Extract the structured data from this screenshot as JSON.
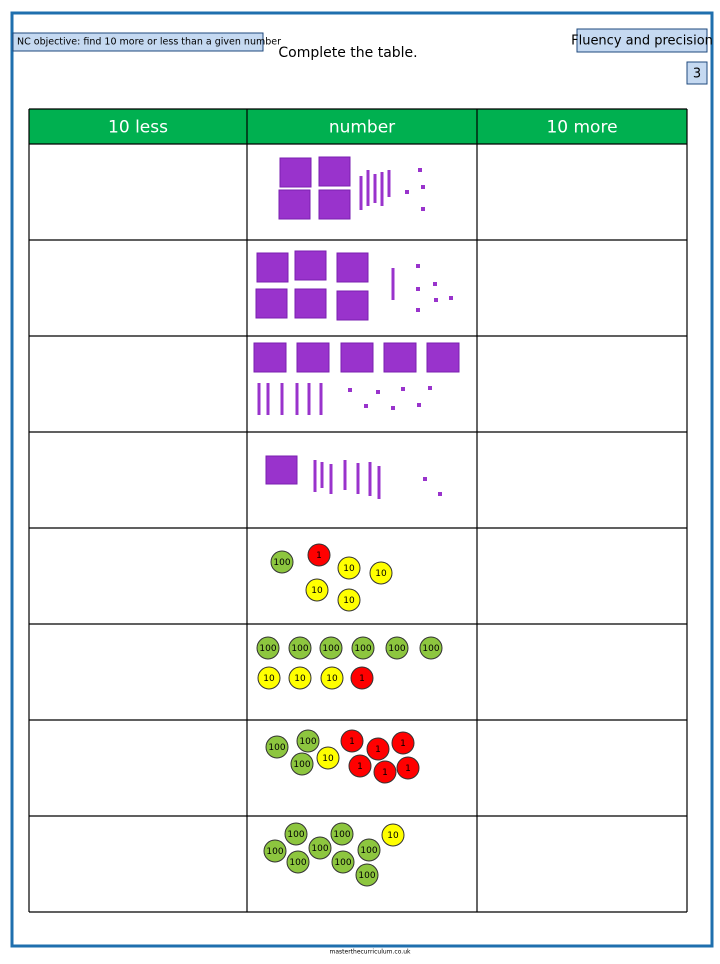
{
  "header": {
    "objective": "NC objective: find 10 more or less than a given number",
    "instruction": "Complete the table.",
    "strand": "Fluency and precision",
    "question_number": "3"
  },
  "table": {
    "columns": [
      "10 less",
      "number",
      "10 more"
    ],
    "header_color": "#00b050",
    "counter_rows": [
      [
        {
          "label": "100",
          "color": "#8dc63f"
        },
        {
          "label": "1",
          "color": "#ff0000"
        },
        {
          "label": "10",
          "color": "#ffff00"
        },
        {
          "label": "10",
          "color": "#ffff00"
        },
        {
          "label": "10",
          "color": "#ffff00"
        },
        {
          "label": "10",
          "color": "#ffff00"
        }
      ],
      [
        {
          "label": "100",
          "color": "#8dc63f"
        },
        {
          "label": "100",
          "color": "#8dc63f"
        },
        {
          "label": "100",
          "color": "#8dc63f"
        },
        {
          "label": "100",
          "color": "#8dc63f"
        },
        {
          "label": "100",
          "color": "#8dc63f"
        },
        {
          "label": "100",
          "color": "#8dc63f"
        },
        {
          "label": "10",
          "color": "#ffff00"
        },
        {
          "label": "10",
          "color": "#ffff00"
        },
        {
          "label": "10",
          "color": "#ffff00"
        },
        {
          "label": "1",
          "color": "#ff0000"
        }
      ],
      [
        {
          "label": "100",
          "color": "#8dc63f"
        },
        {
          "label": "100",
          "color": "#8dc63f"
        },
        {
          "label": "100",
          "color": "#8dc63f"
        },
        {
          "label": "10",
          "color": "#ffff00"
        },
        {
          "label": "1",
          "color": "#ff0000"
        },
        {
          "label": "1",
          "color": "#ff0000"
        },
        {
          "label": "1",
          "color": "#ff0000"
        },
        {
          "label": "1",
          "color": "#ff0000"
        },
        {
          "label": "1",
          "color": "#ff0000"
        },
        {
          "label": "1",
          "color": "#ff0000"
        }
      ],
      [
        {
          "label": "100",
          "color": "#8dc63f"
        },
        {
          "label": "100",
          "color": "#8dc63f"
        },
        {
          "label": "100",
          "color": "#8dc63f"
        },
        {
          "label": "100",
          "color": "#8dc63f"
        },
        {
          "label": "100",
          "color": "#8dc63f"
        },
        {
          "label": "100",
          "color": "#8dc63f"
        },
        {
          "label": "100",
          "color": "#8dc63f"
        },
        {
          "label": "100",
          "color": "#8dc63f"
        },
        {
          "label": "10",
          "color": "#ffff00"
        }
      ]
    ]
  },
  "footer": "masterthecurriculum.co.uk"
}
